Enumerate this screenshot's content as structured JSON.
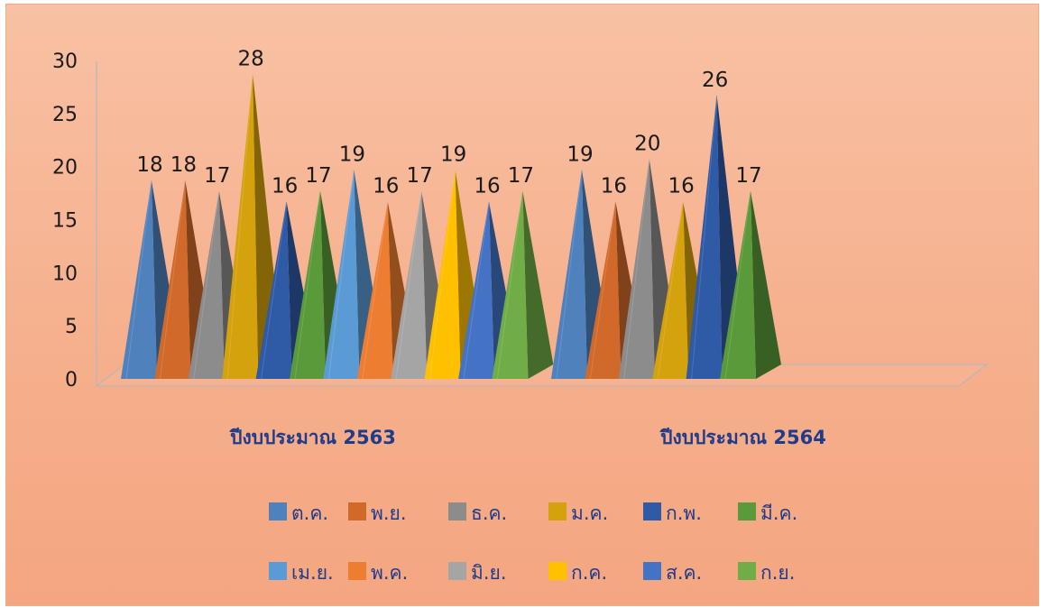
{
  "chart_data": {
    "type": "bar",
    "style": "3d-pyramid",
    "categories": [
      "ปีงบประมาณ 2563",
      "ปีงบประมาณ 2564"
    ],
    "ylim": [
      0,
      30
    ],
    "yticks": [
      "0",
      "5",
      "10",
      "15",
      "20",
      "25",
      "30"
    ],
    "series": [
      {
        "name": "ต.ค.",
        "color": "#4f81bd",
        "values": [
          18,
          19
        ]
      },
      {
        "name": "พ.ย.",
        "color": "#d0692a",
        "values": [
          18,
          16
        ]
      },
      {
        "name": "ธ.ค.",
        "color": "#8c8c8c",
        "values": [
          17,
          20
        ]
      },
      {
        "name": "ม.ค.",
        "color": "#d4a20c",
        "values": [
          28,
          16
        ]
      },
      {
        "name": "ก.พ.",
        "color": "#2e5aa6",
        "values": [
          16,
          26
        ]
      },
      {
        "name": "มี.ค.",
        "color": "#5a9a3a",
        "values": [
          17,
          17
        ]
      },
      {
        "name": "เม.ย.",
        "color": "#5b9bd5",
        "values": [
          19,
          null
        ]
      },
      {
        "name": "พ.ค.",
        "color": "#ed7d31",
        "values": [
          16,
          null
        ]
      },
      {
        "name": "มิ.ย.",
        "color": "#a5a5a5",
        "values": [
          17,
          null
        ]
      },
      {
        "name": "ก.ค.",
        "color": "#ffc000",
        "values": [
          19,
          null
        ]
      },
      {
        "name": "ส.ค.",
        "color": "#4472c4",
        "values": [
          16,
          null
        ]
      },
      {
        "name": "ก.ย.",
        "color": "#70ad47",
        "values": [
          17,
          null
        ]
      }
    ],
    "legend_position": "bottom",
    "grid": false
  }
}
